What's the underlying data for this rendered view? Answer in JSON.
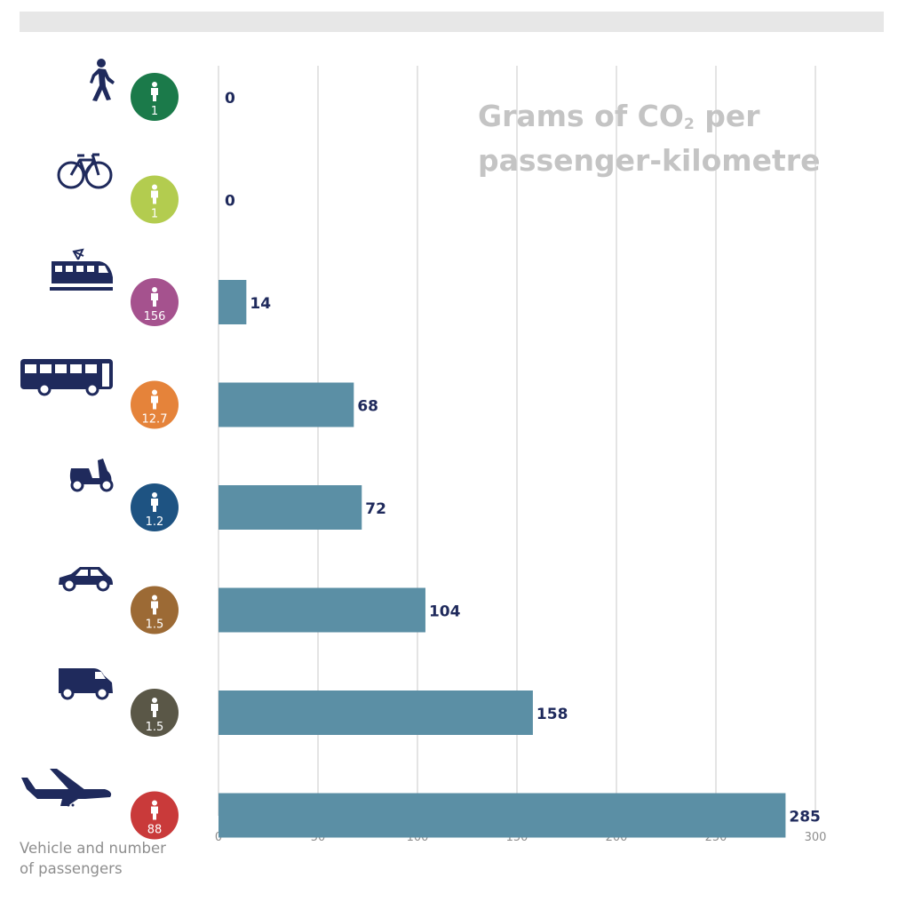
{
  "title": {
    "part1": "Grams of CO",
    "sub": "2",
    "part2": " per",
    "line2": "passenger-kilometre"
  },
  "footer_label": {
    "line1": "Vehicle and number",
    "line2": "of passengers"
  },
  "colors": {
    "bar": "#5b8fa5",
    "icon": "#1f2a5c",
    "grid": "#c8c8c8",
    "value_text": "#1f2a5c",
    "tick_text": "#8e8e8e"
  },
  "chart_data": {
    "type": "bar",
    "orientation": "horizontal",
    "title": "Grams of CO2 per passenger-kilometre",
    "xlabel": "",
    "ylabel": "Vehicle and number of passengers",
    "xlim": [
      0,
      300
    ],
    "xticks": [
      0,
      50,
      100,
      150,
      200,
      250,
      300
    ],
    "grid": true,
    "categories": [
      {
        "icon": "walking-person-icon",
        "passengers": "1",
        "badge_color": "#1b7a4a"
      },
      {
        "icon": "bicycle-icon",
        "passengers": "1",
        "badge_color": "#b3cc4f"
      },
      {
        "icon": "train-icon",
        "passengers": "156",
        "badge_color": "#a5528e"
      },
      {
        "icon": "bus-icon",
        "passengers": "12.7",
        "badge_color": "#e5833a"
      },
      {
        "icon": "scooter-icon",
        "passengers": "1.2",
        "badge_color": "#1e5382"
      },
      {
        "icon": "car-icon",
        "passengers": "1.5",
        "badge_color": "#9c6a35"
      },
      {
        "icon": "van-icon",
        "passengers": "1.5",
        "badge_color": "#5a5747"
      },
      {
        "icon": "airplane-icon",
        "passengers": "88",
        "badge_color": "#c93a3a"
      }
    ],
    "values": [
      0,
      0,
      14,
      68,
      72,
      104,
      158,
      285
    ]
  }
}
